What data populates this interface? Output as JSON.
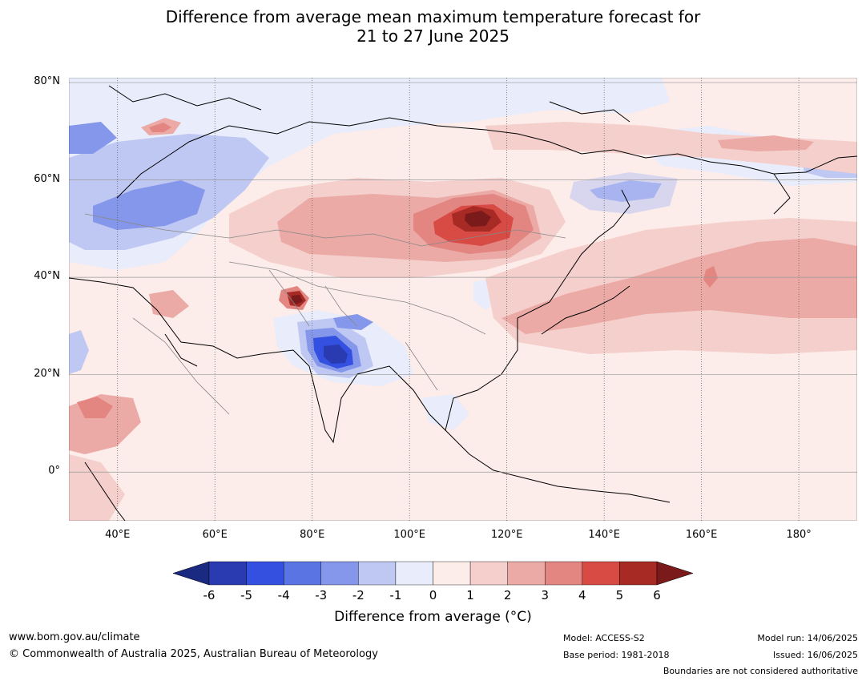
{
  "title_line1": "Difference from average mean maximum temperature forecast for",
  "title_line2": "21 to 27 June 2025",
  "map": {
    "lat_labels": [
      "80°N",
      "60°N",
      "40°N",
      "20°N",
      "0°"
    ],
    "lat_values": [
      80,
      60,
      40,
      20,
      0
    ],
    "lon_labels": [
      "40°E",
      "60°E",
      "80°E",
      "100°E",
      "120°E",
      "140°E",
      "160°E",
      "180°"
    ],
    "lon_values": [
      40,
      60,
      80,
      100,
      120,
      140,
      160,
      180
    ],
    "lon_range": [
      30,
      192
    ],
    "lat_range": [
      -10,
      81
    ]
  },
  "colorbar": {
    "ticks": [
      "-6",
      "-5",
      "-4",
      "-3",
      "-2",
      "-1",
      "0",
      "1",
      "2",
      "3",
      "4",
      "5",
      "6"
    ],
    "colors": [
      "#1a2a80",
      "#2a3ab0",
      "#3350e0",
      "#5b74e3",
      "#8597ea",
      "#bfc8f2",
      "#e8ecfb",
      "#fcecea",
      "#f4cfcc",
      "#ebaaa6",
      "#e38581",
      "#d84a44",
      "#a82a24",
      "#7a1a1a"
    ],
    "title": "Difference from average (°C)"
  },
  "footer": {
    "url": "www.bom.gov.au/climate",
    "copyright": "© Commonwealth of Australia 2025, Australian Bureau of Meteorology",
    "model": "Model: ACCESS-S2",
    "base_period": "Base period: 1981-2018",
    "model_run": "Model run: 14/06/2025",
    "issued": "Issued: 16/06/2025",
    "boundaries": "Boundaries are not considered authoritative"
  }
}
